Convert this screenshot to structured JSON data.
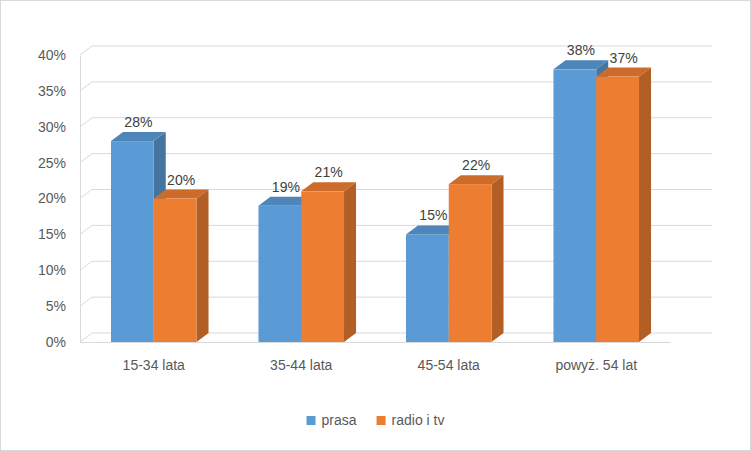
{
  "chart_data": {
    "type": "bar",
    "categories": [
      "15-34 lata",
      "35-44 lata",
      "45-54 lata",
      "powyż. 54 lat"
    ],
    "series": [
      {
        "name": "prasa",
        "color": "#5b9bd5",
        "values": [
          28,
          19,
          15,
          38
        ],
        "value_labels": [
          "28%",
          "19%",
          "15%",
          "38%"
        ]
      },
      {
        "name": "radio i tv",
        "color": "#ed7d31",
        "values": [
          20,
          21,
          22,
          37
        ],
        "value_labels": [
          "20%",
          "21%",
          "22%",
          "37%"
        ]
      }
    ],
    "ylim": [
      0,
      40
    ],
    "yticks": [
      {
        "value": 0,
        "label": "0%"
      },
      {
        "value": 5,
        "label": "5%"
      },
      {
        "value": 10,
        "label": "10%"
      },
      {
        "value": 15,
        "label": "15%"
      },
      {
        "value": 20,
        "label": "20%"
      },
      {
        "value": 25,
        "label": "25%"
      },
      {
        "value": 30,
        "label": "30%"
      },
      {
        "value": 35,
        "label": "35%"
      },
      {
        "value": 40,
        "label": "40%"
      }
    ],
    "grid": true,
    "data_labels": true,
    "legend": "bottom"
  }
}
